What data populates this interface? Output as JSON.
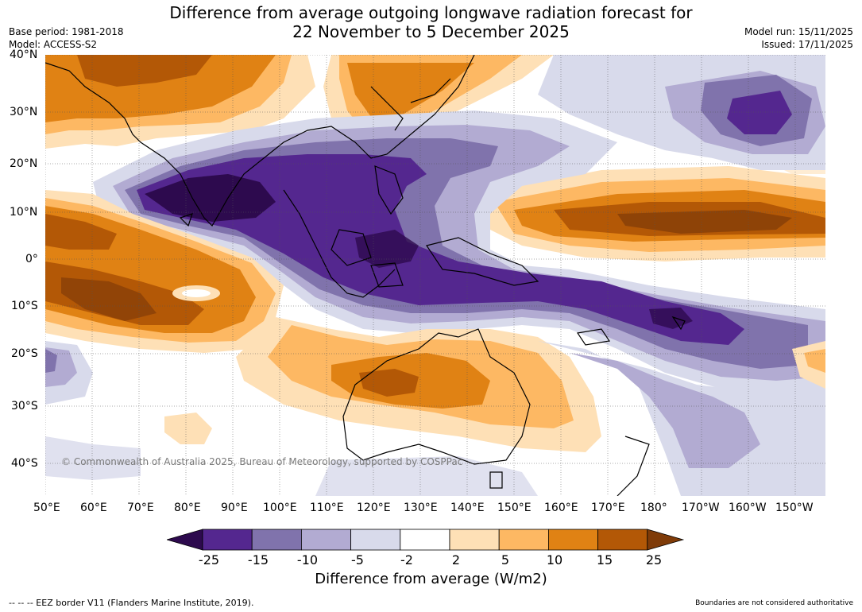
{
  "header": {
    "title_line1": "Difference from average outgoing longwave radiation forecast for",
    "title_line2": "22 November to 5 December 2025",
    "base_period": "Base period: 1981-2018",
    "model": "Model: ACCESS-S2",
    "model_run": "Model run: 15/11/2025",
    "issued": "Issued: 17/11/2025"
  },
  "map": {
    "lat_labels": [
      "40°N",
      "30°N",
      "20°N",
      "10°N",
      "0°",
      "10°S",
      "20°S",
      "30°S",
      "40°S"
    ],
    "lon_labels": [
      "50°E",
      "60°E",
      "70°E",
      "80°E",
      "90°E",
      "100°E",
      "110°E",
      "120°E",
      "130°E",
      "140°E",
      "150°E",
      "160°E",
      "170°E",
      "180°",
      "170°W",
      "160°W",
      "150°W"
    ],
    "copyright": "© Commonwealth of Australia 2025, Bureau of Meteorology, supported by COSPPac"
  },
  "legend": {
    "ticks": [
      "-25",
      "-15",
      "-10",
      "-5",
      "-2",
      "2",
      "5",
      "10",
      "15",
      "25"
    ],
    "colors": [
      "#2d0a4e",
      "#54278f",
      "#8073ac",
      "#b2abd2",
      "#d8daeb",
      "#ffffff",
      "#fee0b6",
      "#fdb863",
      "#e08214",
      "#b35806",
      "#7f3b08"
    ],
    "title": "Difference from average (W/m2)"
  },
  "footer": {
    "eez": "--  --  -- EEZ border V11 (Flanders Marine Institute, 2019).",
    "disclaimer": "Boundaries are not considered authoritative"
  }
}
